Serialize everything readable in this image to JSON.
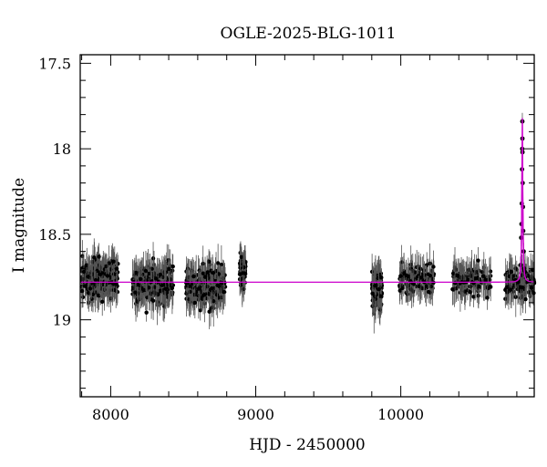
{
  "chart_data": {
    "type": "scatter",
    "title": "OGLE-2025-BLG-1011",
    "xlabel": "HJD - 2450000",
    "ylabel": "I magnitude",
    "xlim": [
      7790,
      10920
    ],
    "ylim": [
      19.45,
      17.45
    ],
    "y_inverted": true,
    "x_ticks": [
      8000,
      9000,
      10000
    ],
    "y_ticks": [
      17.5,
      18,
      18.5,
      19
    ],
    "grid": false,
    "colors": {
      "points": "#000000",
      "errorbars": "#555555",
      "model": "#cc00cc",
      "frame": "#000000"
    },
    "baseline_magnitude": 18.78,
    "seasons": [
      {
        "x_start": 7800,
        "x_end": 8050,
        "mean_mag": 18.76,
        "scatter": 0.08,
        "n_points": 260
      },
      {
        "x_start": 8150,
        "x_end": 8430,
        "mean_mag": 18.79,
        "scatter": 0.08,
        "n_points": 260
      },
      {
        "x_start": 8520,
        "x_end": 8790,
        "mean_mag": 18.8,
        "scatter": 0.08,
        "n_points": 260
      },
      {
        "x_start": 8890,
        "x_end": 8930,
        "mean_mag": 18.72,
        "scatter": 0.08,
        "n_points": 60
      },
      {
        "x_start": 9800,
        "x_end": 9870,
        "mean_mag": 18.83,
        "scatter": 0.09,
        "n_points": 120
      },
      {
        "x_start": 9990,
        "x_end": 10230,
        "mean_mag": 18.77,
        "scatter": 0.07,
        "n_points": 120
      },
      {
        "x_start": 10350,
        "x_end": 10620,
        "mean_mag": 18.77,
        "scatter": 0.07,
        "n_points": 120
      },
      {
        "x_start": 10720,
        "x_end": 10920,
        "mean_mag": 18.78,
        "scatter": 0.07,
        "n_points": 110
      }
    ],
    "event": {
      "t0": 10838,
      "peak_mag": 17.82,
      "tE": 7,
      "points": [
        [
          10826,
          18.68
        ],
        [
          10830,
          18.52
        ],
        [
          10832,
          18.44
        ],
        [
          10834,
          18.32
        ],
        [
          10836,
          18.12
        ],
        [
          10837,
          18.0
        ],
        [
          10838,
          17.84
        ],
        [
          10838.5,
          17.94
        ],
        [
          10839,
          18.02
        ],
        [
          10840,
          18.2
        ],
        [
          10842,
          18.34
        ],
        [
          10844,
          18.48
        ],
        [
          10847,
          18.6
        ],
        [
          10850,
          18.7
        ]
      ]
    }
  }
}
